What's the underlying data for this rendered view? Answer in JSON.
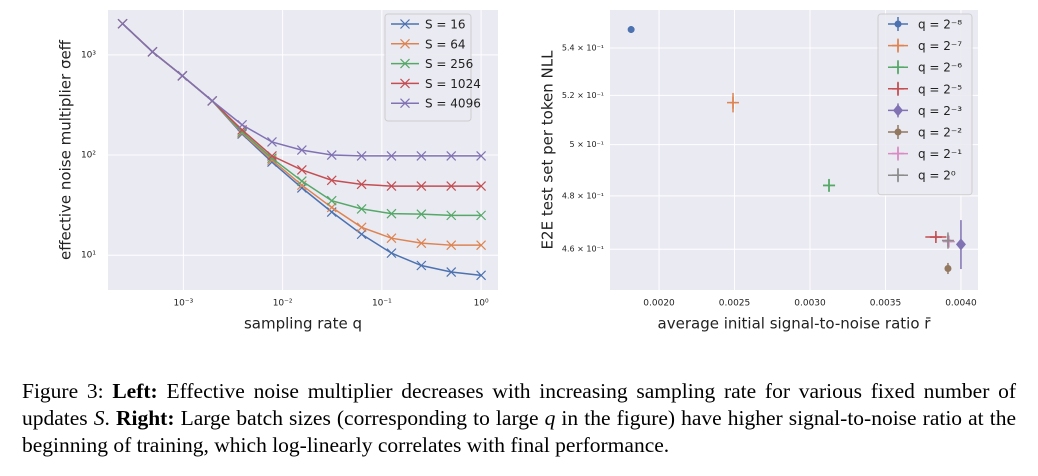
{
  "chart_data": [
    {
      "type": "line",
      "xscale": "log",
      "yscale": "log",
      "grid": true,
      "xlabel": "sampling rate q",
      "ylabel": "effective noise multiplier σeff",
      "xlim": [
        0.000174,
        1.48
      ],
      "ylim": [
        4.5,
        2800
      ],
      "xticks": [
        {
          "value": 0.001,
          "label": "10⁻³"
        },
        {
          "value": 0.01,
          "label": "10⁻²"
        },
        {
          "value": 0.1,
          "label": "10⁻¹"
        },
        {
          "value": 1,
          "label": "10⁰"
        }
      ],
      "yticks": [
        {
          "value": 10,
          "label": "10¹"
        },
        {
          "value": 100,
          "label": "10²"
        },
        {
          "value": 1000,
          "label": "10³"
        }
      ],
      "legend": "upper right",
      "marker": "x",
      "x": [
        0.000244140625,
        0.00048828125,
        0.0009765625,
        0.001953125,
        0.00390625,
        0.0078125,
        0.015625,
        0.03125,
        0.0625,
        0.125,
        0.25,
        0.5,
        1
      ],
      "series": [
        {
          "name": "S = 16",
          "color": "#4c72b0",
          "values": [
            2042,
            1072,
            617,
            347,
            162,
            85,
            47,
            27,
            16.2,
            10.5,
            7.9,
            6.8,
            6.3
          ]
        },
        {
          "name": "S = 64",
          "color": "#dd8452",
          "values": [
            2042,
            1072,
            617,
            347,
            166,
            89,
            50,
            30,
            19,
            14.8,
            13.2,
            12.6,
            12.6
          ]
        },
        {
          "name": "S = 256",
          "color": "#55a868",
          "values": [
            2042,
            1072,
            617,
            347,
            170,
            93,
            55,
            35,
            29,
            26,
            25.7,
            25,
            25
          ]
        },
        {
          "name": "S = 1024",
          "color": "#c44e52",
          "values": [
            2042,
            1072,
            617,
            347,
            178,
            98,
            71,
            56,
            51,
            49,
            49,
            49,
            49
          ]
        },
        {
          "name": "S = 4096",
          "color": "#8172b3",
          "values": [
            2042,
            1072,
            617,
            347,
            200,
            135,
            112,
            100,
            98,
            98,
            98,
            98,
            98
          ]
        }
      ]
    },
    {
      "type": "scatter",
      "xscale": "linear",
      "yscale": "log",
      "grid": true,
      "xlabel": "average initial signal-to-noise ratio r̄",
      "ylabel": "E2E test set per token NLL",
      "xlim": [
        0.001675,
        0.004113
      ],
      "ylim": [
        0.4453,
        0.5566
      ],
      "xticks": [
        {
          "value": 0.002,
          "label": "0.0020"
        },
        {
          "value": 0.0025,
          "label": "0.0025"
        },
        {
          "value": 0.003,
          "label": "0.0030"
        },
        {
          "value": 0.0035,
          "label": "0.0035"
        },
        {
          "value": 0.004,
          "label": "0.0040"
        }
      ],
      "yticks": [
        {
          "value": 0.46,
          "label": "4.6 × 10⁻¹"
        },
        {
          "value": 0.48,
          "label": "4.8 × 10⁻¹"
        },
        {
          "value": 0.5,
          "label": "5 × 10⁻¹"
        },
        {
          "value": 0.52,
          "label": "5.2 × 10⁻¹"
        },
        {
          "value": 0.54,
          "label": "5.4 × 10⁻¹"
        }
      ],
      "legend": "upper right",
      "series": [
        {
          "name": "q = 2⁻⁸",
          "color": "#4c72b0",
          "marker": "o",
          "x": [
            0.001815
          ],
          "values": [
            0.548
          ],
          "xerr": [
            1e-05
          ],
          "yerr": [
            0.0015
          ]
        },
        {
          "name": "q = 2⁻⁷",
          "color": "#dd8452",
          "marker": "+",
          "x": [
            0.00249
          ],
          "values": [
            0.517
          ],
          "xerr": [
            2e-05
          ],
          "yerr": [
            0.004
          ]
        },
        {
          "name": "q = 2⁻⁶",
          "color": "#55a868",
          "marker": "+",
          "x": [
            0.003126
          ],
          "values": [
            0.484
          ],
          "xerr": [
            4e-05
          ],
          "yerr": [
            0.0025
          ]
        },
        {
          "name": "q = 2⁻⁵",
          "color": "#c44e52",
          "marker": "+",
          "x": [
            0.003834
          ],
          "values": [
            0.4645
          ],
          "xerr": [
            7e-05
          ],
          "yerr": [
            0.001
          ]
        },
        {
          "name": "q = 2⁻³",
          "color": "#8172b3",
          "marker": "D",
          "x": [
            0.004
          ],
          "values": [
            0.4618
          ],
          "xerr": [
            1e-05
          ],
          "yerr": [
            0.009
          ]
        },
        {
          "name": "q = 2⁻²",
          "color": "#937860",
          "marker": "o",
          "x": [
            0.003914
          ],
          "values": [
            0.453
          ],
          "xerr": [
            1e-05
          ],
          "yerr": [
            0.002
          ]
        },
        {
          "name": "q = 2⁻¹",
          "color": "#da8bc3",
          "marker": "+",
          "x": [
            0.00392
          ],
          "values": [
            0.4628
          ],
          "xerr": [
            2e-05
          ],
          "yerr": [
            0.001
          ]
        },
        {
          "name": "q = 2⁰",
          "color": "#8c8c8c",
          "marker": "+",
          "x": [
            0.003914
          ],
          "values": [
            0.4632
          ],
          "xerr": [
            2e-05
          ],
          "yerr": [
            0.003
          ]
        }
      ]
    }
  ],
  "caption": [
    {
      "text": "Figure 3: "
    },
    {
      "text": "Left:",
      "bold": true
    },
    {
      "text": " Effective noise multiplier decreases with increasing sampling rate for various fixed number of updates "
    },
    {
      "text": "S",
      "italic": true
    },
    {
      "text": ". "
    },
    {
      "text": "Right:",
      "bold": true
    },
    {
      "text": " Large batch sizes (corresponding to large "
    },
    {
      "text": "q",
      "italic": true
    },
    {
      "text": " in the figure) have higher signal-to-noise ratio at the beginning of training, which log-linearly correlates with final performance."
    }
  ]
}
